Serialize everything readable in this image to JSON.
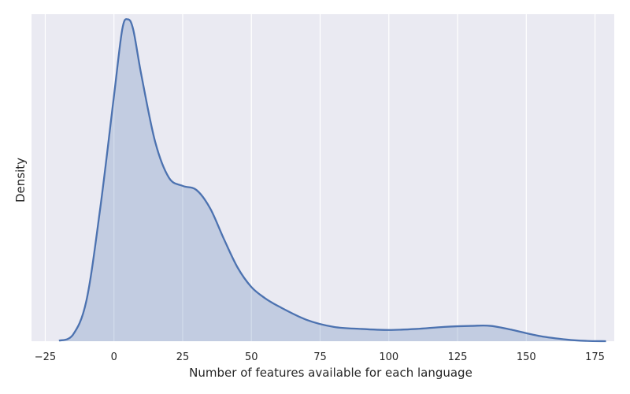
{
  "chart_data": {
    "type": "area",
    "xlabel": "Number of features available for each language",
    "ylabel": "Density",
    "xlim": [
      -30,
      182
    ],
    "x_ticks": [
      -25,
      0,
      25,
      50,
      75,
      100,
      125,
      150,
      175
    ],
    "x_tick_labels": [
      "−25",
      "0",
      "25",
      "50",
      "75",
      "100",
      "125",
      "150",
      "175"
    ],
    "y_ticks_visible": false,
    "grid": true,
    "grid_axis": "x",
    "colors": {
      "background": "#eaeaf2",
      "line": "#4c72b0",
      "fill": "#4c72b0",
      "fill_opacity": 0.25,
      "grid": "#ffffff"
    },
    "series": [
      {
        "values": {
          "x": [
            -20,
            -15,
            -10,
            -5,
            0,
            3,
            5,
            7,
            10,
            15,
            20,
            25,
            30,
            35,
            40,
            45,
            50,
            55,
            60,
            70,
            80,
            90,
            100,
            110,
            120,
            130,
            137,
            145,
            155,
            165,
            172,
            179
          ],
          "y": [
            5e-05,
            0.0006,
            0.004,
            0.013,
            0.024,
            0.0305,
            0.0315,
            0.0305,
            0.026,
            0.0195,
            0.016,
            0.0152,
            0.0148,
            0.013,
            0.01,
            0.0072,
            0.0053,
            0.0042,
            0.0034,
            0.0021,
            0.0014,
            0.0012,
            0.0011,
            0.0012,
            0.0014,
            0.0015,
            0.0015,
            0.0011,
            0.0005,
            0.00015,
            3e-05,
            0.0
          ]
        }
      }
    ],
    "ylim": [
      0,
      0.032
    ]
  }
}
